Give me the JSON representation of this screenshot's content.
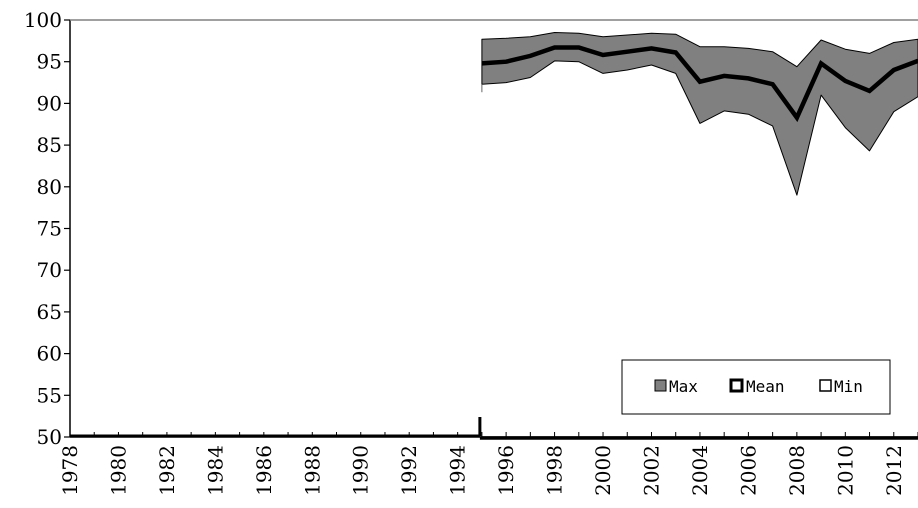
{
  "chart_data": {
    "type": "area",
    "title": "",
    "xlabel": "",
    "ylabel": "",
    "ylim": [
      50,
      100
    ],
    "xlim": [
      1978,
      2013
    ],
    "y_ticks": [
      50,
      55,
      60,
      65,
      70,
      75,
      80,
      85,
      90,
      95,
      100
    ],
    "x_tick_labels": [
      "1978",
      "1980",
      "1982",
      "1984",
      "1986",
      "1988",
      "1990",
      "1992",
      "1994",
      "1996",
      "1998",
      "2000",
      "2002",
      "2004",
      "2006",
      "2008",
      "2010",
      "2012"
    ],
    "grid": false,
    "legend": {
      "position": "bottom-right",
      "entries": [
        "Max",
        "Mean",
        "Min"
      ]
    },
    "colors": {
      "band_fill": "#808080",
      "line": "#000000"
    },
    "x": [
      1995,
      1996,
      1997,
      1998,
      1999,
      2000,
      2001,
      2002,
      2003,
      2004,
      2005,
      2006,
      2007,
      2008,
      2009,
      2010,
      2011,
      2012,
      2013
    ],
    "series": [
      {
        "name": "Max",
        "values": [
          97.7,
          97.8,
          98.0,
          98.5,
          98.4,
          98.0,
          98.2,
          98.4,
          98.3,
          96.8,
          96.8,
          96.6,
          96.2,
          94.4,
          97.6,
          96.5,
          96.0,
          97.3,
          97.7
        ]
      },
      {
        "name": "Mean",
        "values": [
          94.8,
          95.0,
          95.7,
          96.7,
          96.7,
          95.8,
          96.2,
          96.6,
          96.1,
          92.6,
          93.3,
          93.0,
          92.3,
          88.3,
          94.8,
          92.7,
          91.5,
          94.0,
          95.1
        ]
      },
      {
        "name": "Min",
        "values": [
          92.3,
          92.5,
          93.1,
          95.1,
          95.0,
          93.6,
          94.0,
          94.6,
          93.6,
          87.6,
          89.1,
          88.7,
          87.3,
          79.0,
          91.0,
          87.1,
          84.3,
          89.0,
          90.8
        ]
      }
    ],
    "baseline_value": 50
  }
}
